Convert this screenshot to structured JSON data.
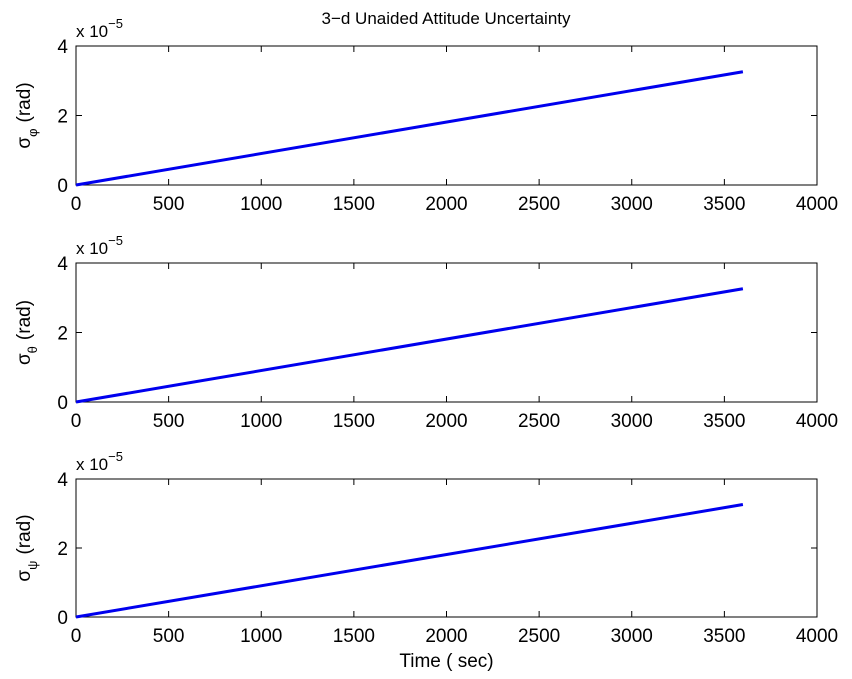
{
  "figure_title": "3−d Unaided Attitude Uncertainty",
  "series_color": "#0000ee",
  "chart_data": [
    {
      "type": "line",
      "ylabel_symbol": "σ",
      "ylabel_subscript": "φ",
      "ylabel_unit": "(rad)",
      "y_multiplier": "x 10",
      "y_exponent": "−5",
      "xlim": [
        0,
        4000
      ],
      "ylim": [
        0,
        4e-05
      ],
      "xticks": [
        "0",
        "500",
        "1000",
        "1500",
        "2000",
        "2500",
        "3000",
        "3500",
        "4000"
      ],
      "yticks": [
        "0",
        "2",
        "4"
      ],
      "xlabel": "",
      "grid": false,
      "series": [
        {
          "x": [
            0,
            3600
          ],
          "y": [
            0,
            3.26e-05
          ]
        }
      ]
    },
    {
      "type": "line",
      "ylabel_symbol": "σ",
      "ylabel_subscript": "θ",
      "ylabel_unit": "(rad)",
      "y_multiplier": "x 10",
      "y_exponent": "−5",
      "xlim": [
        0,
        4000
      ],
      "ylim": [
        0,
        4e-05
      ],
      "xticks": [
        "0",
        "500",
        "1000",
        "1500",
        "2000",
        "2500",
        "3000",
        "3500",
        "4000"
      ],
      "yticks": [
        "0",
        "2",
        "4"
      ],
      "xlabel": "",
      "grid": false,
      "series": [
        {
          "x": [
            0,
            3600
          ],
          "y": [
            0,
            3.26e-05
          ]
        }
      ]
    },
    {
      "type": "line",
      "ylabel_symbol": "σ",
      "ylabel_subscript": "ψ",
      "ylabel_unit": "(rad)",
      "y_multiplier": "x 10",
      "y_exponent": "−5",
      "xlim": [
        0,
        4000
      ],
      "ylim": [
        0,
        4e-05
      ],
      "xticks": [
        "0",
        "500",
        "1000",
        "1500",
        "2000",
        "2500",
        "3000",
        "3500",
        "4000"
      ],
      "yticks": [
        "0",
        "2",
        "4"
      ],
      "xlabel": "Time ( sec)",
      "grid": false,
      "series": [
        {
          "x": [
            0,
            3600
          ],
          "y": [
            0,
            3.26e-05
          ]
        }
      ]
    }
  ]
}
